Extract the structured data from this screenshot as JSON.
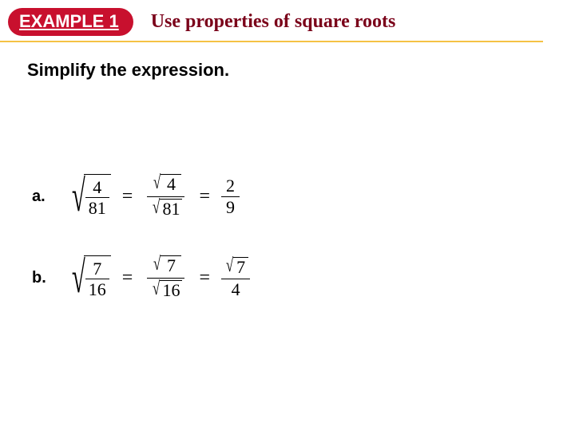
{
  "colors": {
    "badge_bg": "#c8102e",
    "badge_fg": "#ffffff",
    "underline": "#f5c245",
    "title": "#7a0019"
  },
  "header": {
    "badge": "EXAMPLE 1",
    "title": "Use properties of square roots"
  },
  "instruction": "Simplify the expression.",
  "problems": {
    "a": {
      "label": "a.",
      "lhs": {
        "num": "4",
        "den": "81"
      },
      "mid": {
        "num": "4",
        "den": "81"
      },
      "rhs": {
        "num": "2",
        "den": "9"
      }
    },
    "b": {
      "label": "b.",
      "lhs": {
        "num": "7",
        "den": "16"
      },
      "mid": {
        "num": "7",
        "den": "16"
      },
      "rhs": {
        "num": "7",
        "den": "4"
      }
    }
  },
  "eq": "="
}
